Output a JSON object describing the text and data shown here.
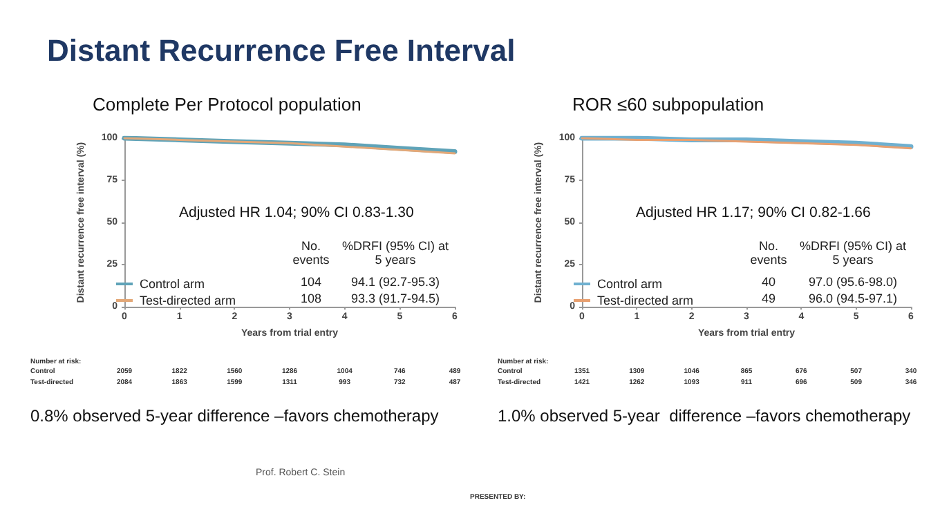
{
  "chart_data": [
    {
      "type": "other",
      "title": "Distant Recurrence Free Interval",
      "annotations": [
        "PRESENTED BY:",
        "Prof. Robert C. Stein"
      ]
    },
    {
      "type": "line",
      "title": "Complete Per Protocol population",
      "xlabel": "Years from trial entry",
      "ylabel": "Distant recurrence free interval (%)",
      "x": [
        0,
        1,
        2,
        3,
        4,
        5,
        6
      ],
      "xlim": [
        0,
        6
      ],
      "xticks": [
        0,
        1,
        2,
        3,
        4,
        5,
        6
      ],
      "ylim": [
        0,
        100
      ],
      "yticks": [
        0,
        25,
        50,
        75,
        100
      ],
      "grid": false,
      "legend": "bottom left",
      "marker": "none",
      "line_style": "solid",
      "series": [
        {
          "name": "Control arm",
          "color": "#5fa3b8",
          "values": [
            100,
            99,
            98,
            97,
            96,
            94,
            92
          ]
        },
        {
          "name": "Test-directed arm",
          "color": "#e3a878",
          "values": [
            100,
            99,
            98,
            97,
            95,
            93,
            91
          ]
        }
      ],
      "annotations": [
        "Adjusted HR 1.04; 90% CI 0.83-1.30",
        "No. events",
        "%DRFI (95% CI) at 5 years",
        "104",
        "94.1 (92.7-95.3)",
        "108",
        "93.3 (91.7-94.5)",
        "Number at risk:",
        "Control 2059 1822 1560 1286 1004 746 489",
        "Test-directed 2084 1863 1599 1311 993 732 487",
        "0.8% observed 5-year difference –favors chemotherapy"
      ]
    },
    {
      "type": "line",
      "title": "ROR ≤60 subpopulation",
      "xlabel": "Years from trial entry",
      "ylabel": "Distant recurrence free interval (%)",
      "x": [
        0,
        1,
        2,
        3,
        4,
        5,
        6
      ],
      "xlim": [
        0,
        6
      ],
      "xticks": [
        0,
        1,
        2,
        3,
        4,
        5,
        6
      ],
      "ylim": [
        0,
        100
      ],
      "yticks": [
        0,
        25,
        50,
        75,
        100
      ],
      "grid": false,
      "legend": "bottom left",
      "marker": "none",
      "line_style": "solid",
      "series": [
        {
          "name": "Control arm",
          "color": "#6fb0d0",
          "values": [
            100,
            100,
            99,
            99,
            98,
            97,
            95
          ]
        },
        {
          "name": "Test-directed arm",
          "color": "#e8a070",
          "values": [
            100,
            99,
            99,
            98,
            97,
            96,
            94
          ]
        }
      ],
      "annotations": [
        "Adjusted HR 1.17; 90% CI 0.82-1.66",
        "No. events",
        "%DRFI (95% CI) at 5 years",
        "40",
        "97.0 (95.6-98.0)",
        "49",
        "96.0 (94.5-97.1)",
        "Number at risk:",
        "Control 1351 1309 1046 865 676 507 340",
        "Test-directed 1421 1262 1093 911 696 509 346",
        "1.0% observed 5-year  difference –favors chemotherapy"
      ]
    }
  ]
}
